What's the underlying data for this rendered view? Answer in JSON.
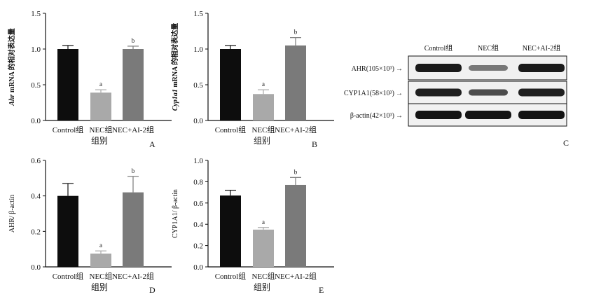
{
  "colors": {
    "control": "#0d0d0d",
    "nec": "#a9a9a9",
    "nec_ai2": "#7a7a7a"
  },
  "chart_data": [
    {
      "panel": "A",
      "type": "bar",
      "ylabel_prefix": "Ahr",
      "ylabel_rest": " mRNA 的相对表达量",
      "xlabel": "组别",
      "categories": [
        "Control组",
        "NEC组",
        "NEC+AI-2组"
      ],
      "values": [
        1.0,
        0.39,
        1.0
      ],
      "errors": [
        0.05,
        0.04,
        0.04
      ],
      "sig": [
        "",
        "a",
        "b"
      ],
      "ylim": [
        0,
        1.5
      ],
      "yticks": [
        "0.0",
        "0.5",
        "1.0",
        "1.5"
      ]
    },
    {
      "panel": "B",
      "type": "bar",
      "ylabel_prefix": "Cyp1a1",
      "ylabel_rest": " mRNA 的相对表达量",
      "xlabel": "组别",
      "categories": [
        "Control组",
        "NEC组",
        "NEC+AI-2组"
      ],
      "values": [
        1.0,
        0.37,
        1.05
      ],
      "errors": [
        0.05,
        0.06,
        0.11
      ],
      "sig": [
        "",
        "a",
        "b"
      ],
      "ylim": [
        0,
        1.5
      ],
      "yticks": [
        "0.0",
        "0.5",
        "1.0",
        "1.5"
      ]
    },
    {
      "panel": "D",
      "type": "bar",
      "ylabel_prefix": "",
      "ylabel_rest": "AHR/ β-actin",
      "xlabel": "组别",
      "categories": [
        "Control组",
        "NEC组",
        "NEC+AI-2组"
      ],
      "values": [
        0.4,
        0.075,
        0.42
      ],
      "errors": [
        0.07,
        0.015,
        0.09
      ],
      "sig": [
        "",
        "a",
        "b"
      ],
      "ylim": [
        0,
        0.6
      ],
      "yticks": [
        "0.0",
        "0.2",
        "0.4",
        "0.6"
      ]
    },
    {
      "panel": "E",
      "type": "bar",
      "ylabel_prefix": "",
      "ylabel_rest": "CYP1A1/ β-actin",
      "xlabel": "组别",
      "categories": [
        "Control组",
        "NEC组",
        "NEC+AI-2组"
      ],
      "values": [
        0.67,
        0.35,
        0.77
      ],
      "errors": [
        0.05,
        0.02,
        0.07
      ],
      "sig": [
        "",
        "a",
        "b"
      ],
      "ylim": [
        0,
        1.0
      ],
      "yticks": [
        "0.0",
        "0.2",
        "0.4",
        "0.6",
        "0.8",
        "1.0"
      ]
    }
  ],
  "western_blot": {
    "panel": "C",
    "lanes": [
      "Control组",
      "NEC组",
      "NEC+AI-2组"
    ],
    "rows": [
      "AHR(105×10³)",
      "CYP1A1(58×10³)",
      "β-actin(42×10³)"
    ],
    "arrow": "→"
  }
}
